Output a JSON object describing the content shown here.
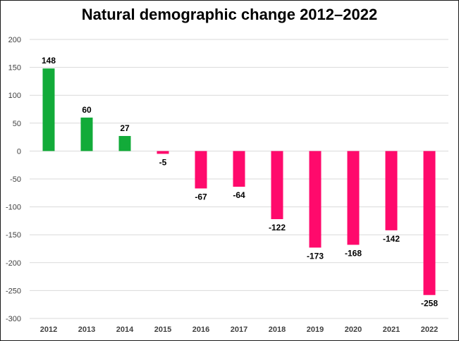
{
  "chart_data": {
    "type": "bar",
    "title": "Natural demographic change 2012–2022",
    "xlabel": "",
    "ylabel": "",
    "categories": [
      "2012",
      "2013",
      "2014",
      "2015",
      "2016",
      "2017",
      "2018",
      "2019",
      "2020",
      "2021",
      "2022"
    ],
    "values": [
      148,
      60,
      27,
      -5,
      -67,
      -64,
      -122,
      -173,
      -168,
      -142,
      -258
    ],
    "data_labels": [
      "148",
      "60",
      "27",
      "-5",
      "-67",
      "-64",
      "-122",
      "-173",
      "-168",
      "-142",
      "-258"
    ],
    "ylim": [
      -300,
      200
    ],
    "yticks": [
      "200",
      "150",
      "100",
      "50",
      "0",
      "-50",
      "-100",
      "-150",
      "-200",
      "-250",
      "-300"
    ],
    "ytick_values": [
      200,
      150,
      100,
      50,
      0,
      -50,
      -100,
      -150,
      -200,
      -250,
      -300
    ],
    "grid": true,
    "legend": "none",
    "colors": {
      "positive": "#12ab39",
      "negative": "#ff0a6c",
      "grid": "#d9d9d9"
    }
  }
}
